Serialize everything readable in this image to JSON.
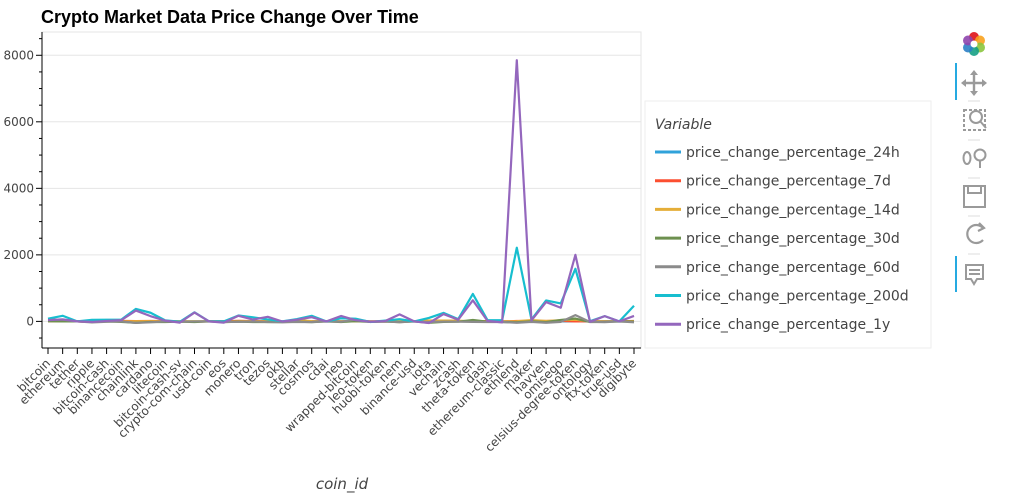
{
  "chart_data": {
    "type": "line",
    "title": "Crypto Market Data Price Change Over Time",
    "xlabel": "coin_id",
    "ylabel": "",
    "ylim": [
      -800,
      8700
    ],
    "yticks": [
      0,
      2000,
      4000,
      6000,
      8000
    ],
    "ytick_labels": [
      "0",
      "2000",
      "4000",
      "6000",
      "8000"
    ],
    "grid": true,
    "legend": {
      "title": "Variable",
      "placement": "right"
    },
    "categories": [
      "bitcoin",
      "ethereum",
      "tether",
      "ripple",
      "bitcoin-cash",
      "binancecoin",
      "chainlink",
      "cardano",
      "litecoin",
      "bitcoin-cash-sv",
      "crypto-com-chain",
      "usd-coin",
      "eos",
      "monero",
      "tron",
      "tezos",
      "okb",
      "stellar",
      "cosmos",
      "cdai",
      "neo",
      "wrapped-bitcoin",
      "leo-token",
      "huobi-token",
      "nem",
      "binance-usd",
      "iota",
      "vechain",
      "zcash",
      "theta-token",
      "dash",
      "ethereum-classic",
      "ethlend",
      "maker",
      "havven",
      "omisego",
      "celsius-degree-token",
      "ontology",
      "ftx-token",
      "true-usd",
      "digibyte"
    ],
    "series": [
      {
        "name": "price_change_percentage_24h",
        "color": "#30a2da",
        "values": [
          1,
          0.4,
          0,
          -0.2,
          2.2,
          2.5,
          2.2,
          0.5,
          1.8,
          1.2,
          -1.5,
          0,
          1,
          -0.5,
          3.1,
          -0.1,
          -0.5,
          2.7,
          6.5,
          0.2,
          1.7,
          0.5,
          -1,
          0.5,
          -0.2,
          0,
          5.2,
          0.7,
          -0.7,
          -0.8,
          -1.2,
          0.8,
          -0.5,
          -0.3,
          -0.8,
          0.2,
          -1.4,
          -0.1,
          0.3,
          -0.2,
          -0.2
        ]
      },
      {
        "name": "price_change_percentage_7d",
        "color": "#fc4f30",
        "values": [
          7.5,
          10.4,
          0,
          -17.9,
          14.7,
          12.5,
          9.5,
          13.6,
          7.9,
          0.5,
          -9.4,
          0,
          4.2,
          14.5,
          8.9,
          5.6,
          -11.6,
          17.6,
          -0.6,
          -0.3,
          -0.4,
          7,
          0.5,
          -4.2,
          -2,
          0.1,
          -8.2,
          19.8,
          8.9,
          -3.4,
          12.6,
          -3.1,
          11,
          10,
          12.4,
          13.2,
          -1.5,
          2.4,
          1.6,
          -0.4,
          12.3
        ]
      },
      {
        "name": "price_change_percentage_14d",
        "color": "#e5ae38",
        "values": [
          6.1,
          4.9,
          0,
          1.4,
          16.1,
          1.7,
          3.8,
          5.1,
          6.4,
          3.8,
          5.3,
          0,
          -5.6,
          6.6,
          6.5,
          2.9,
          -7.2,
          47.7,
          4.6,
          0,
          0.7,
          6,
          0.7,
          0.7,
          -0.8,
          0,
          25.9,
          24.2,
          20.1,
          1.8,
          1.7,
          1.1,
          3.6,
          37.3,
          11.8,
          35.8,
          50,
          4.5,
          -2.2,
          0.1,
          6.4
        ]
      },
      {
        "name": "price_change_percentage_30d",
        "color": "#6d904f",
        "values": [
          7.5,
          0.3,
          0,
          -16.6,
          -0.5,
          -16.2,
          -40.7,
          -16.9,
          -20.1,
          -9.5,
          -19.1,
          0,
          -22.4,
          -6.7,
          -18.8,
          -17.4,
          -17.7,
          -8.4,
          -23,
          0.6,
          -19.4,
          7.3,
          -13.4,
          -5.7,
          -21,
          0,
          -41.2,
          -15.2,
          -8.9,
          41,
          -9.6,
          -17.9,
          -24.8,
          -0.2,
          -19.9,
          41.4,
          85.9,
          -20.9,
          -13.2,
          0.1,
          -6.7
        ]
      },
      {
        "name": "price_change_percentage_60d",
        "color": "#8b8b8b",
        "values": [
          55.2,
          51.2,
          0,
          -30.6,
          -10.9,
          -1.5,
          -44.6,
          -27,
          -0.3,
          -10,
          -1.5,
          0,
          -16.6,
          -14.3,
          -4.1,
          -20.4,
          -26.1,
          -14,
          -20,
          1.3,
          -13,
          55.4,
          -11.3,
          -0.1,
          -24.8,
          -0.3,
          -19.2,
          -8.4,
          -8.9,
          -14.8,
          -19.6,
          -18.8,
          -41.6,
          -16.6,
          -41.3,
          -16.2,
          188.4,
          -17.1,
          -23.8,
          0,
          -28.3
        ]
      },
      {
        "name": "price_change_percentage_200d",
        "color": "#17becf",
        "values": [
          81.2,
          169,
          -0.2,
          45.7,
          49.1,
          54.1,
          375.5,
          259.6,
          30.5,
          -11.6,
          271.7,
          0,
          1,
          176.5,
          121.6,
          58.1,
          3.3,
          68.6,
          167.2,
          -0.7,
          94.8,
          80.6,
          -17.5,
          22.9,
          65.8,
          -0.4,
          103.3,
          255.1,
          67.2,
          825.1,
          35.8,
          34.3,
          2215.6,
          54.5,
          630.3,
          538.3,
          1580.8,
          7.1,
          157.9,
          0,
          470.8
        ]
      },
      {
        "name": "price_change_percentage_1y",
        "color": "#9467bd",
        "values": [
          37.5,
          60.5,
          -0.2,
          -15.5,
          14.2,
          37.1,
          325.1,
          157.6,
          22.7,
          -37,
          265.8,
          -0.6,
          -36.4,
          168.5,
          54.5,
          138.6,
          -3,
          51,
          127.9,
          -0.8,
          163,
          36.4,
          -10,
          8.1,
          211,
          -0.4,
          -49.8,
          220.1,
          51.6,
          633.4,
          15.9,
          -29.1,
          7852.1,
          29.5,
          581,
          409.3,
          2000.1,
          -13.3,
          158,
          0.4,
          163.6
        ]
      }
    ]
  }
}
